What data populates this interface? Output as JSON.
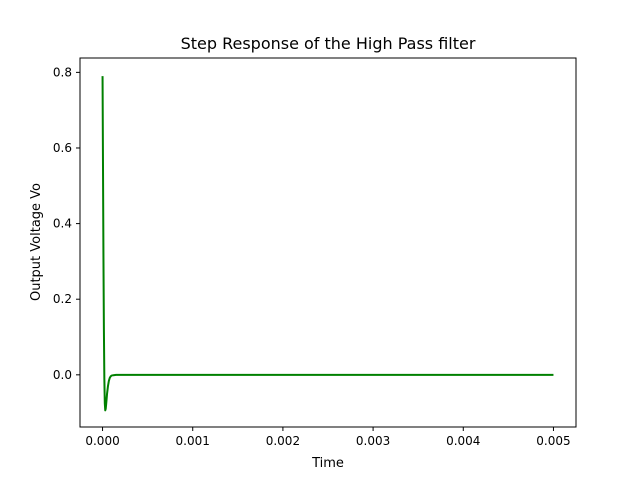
{
  "chart_data": {
    "type": "line",
    "title": "Step Response of the High Pass filter",
    "xlabel": "Time",
    "ylabel": "Output Voltage Vo",
    "xlim": [
      -0.00025,
      0.00525
    ],
    "ylim": [
      -0.138,
      0.838
    ],
    "xticks": [
      0.0,
      0.001,
      0.002,
      0.003,
      0.004,
      0.005
    ],
    "xtick_labels": [
      "0.000",
      "0.001",
      "0.002",
      "0.003",
      "0.004",
      "0.005"
    ],
    "yticks": [
      0.0,
      0.2,
      0.4,
      0.6,
      0.8
    ],
    "ytick_labels": [
      "0.0",
      "0.2",
      "0.4",
      "0.6",
      "0.8"
    ],
    "grid": false,
    "series": [
      {
        "color": "#008000",
        "x": [
          0.0,
          5e-06,
          1e-05,
          1.5e-05,
          2e-05,
          2.5e-05,
          3e-05,
          3.5e-05,
          4e-05,
          5e-05,
          6e-05,
          7e-05,
          8e-05,
          9e-05,
          0.0001,
          0.00012,
          0.00015,
          0.0002,
          0.0003,
          0.0005,
          0.001,
          0.002,
          0.003,
          0.004,
          0.005
        ],
        "y": [
          0.79,
          0.55,
          0.31,
          0.12,
          -0.01,
          -0.075,
          -0.094,
          -0.09,
          -0.078,
          -0.05,
          -0.03,
          -0.016,
          -0.008,
          -0.004,
          -0.002,
          -0.001,
          0.0,
          0.0,
          0.0,
          0.0,
          0.0,
          0.0,
          0.0,
          0.0,
          0.0
        ]
      }
    ]
  }
}
